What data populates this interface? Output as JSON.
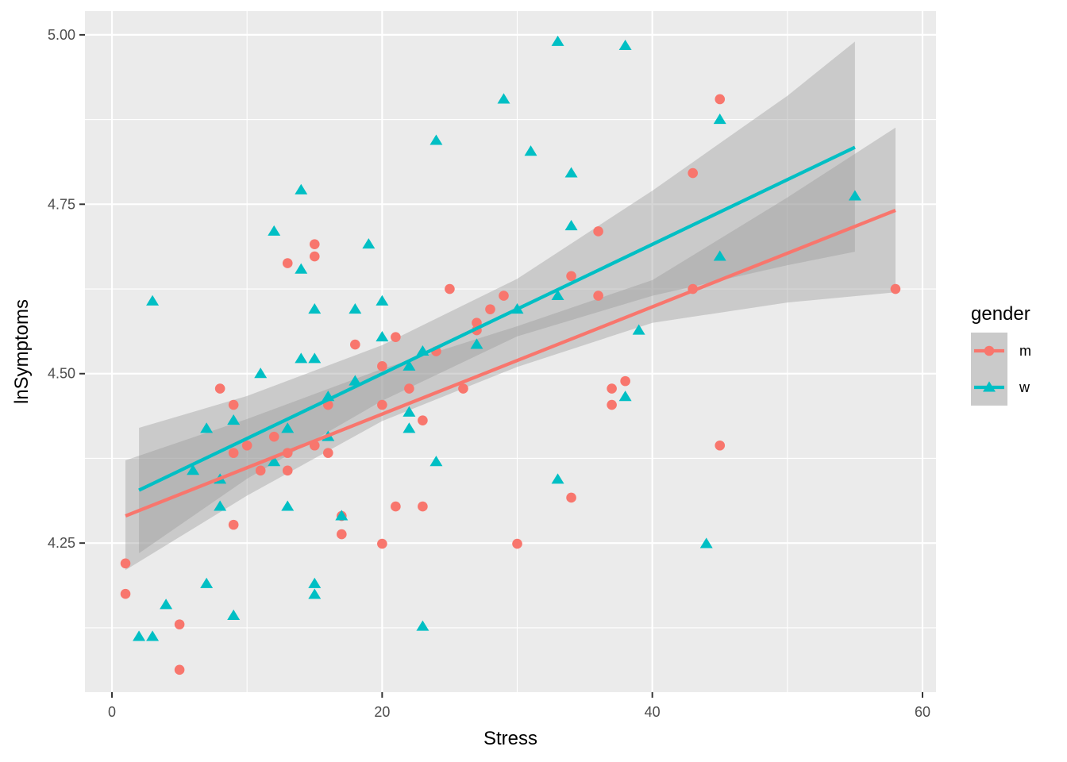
{
  "chart_data": {
    "type": "scatter",
    "xlabel": "Stress",
    "ylabel": "lnSymptoms",
    "xlim": [
      -2,
      61
    ],
    "ylim": [
      4.03,
      5.035
    ],
    "x_ticks": [
      0,
      20,
      40,
      60
    ],
    "x_tick_labels": [
      "0",
      "20",
      "40",
      "60"
    ],
    "y_ticks": [
      4.25,
      4.5,
      4.75,
      5.0
    ],
    "y_tick_labels": [
      "4.25",
      "4.50",
      "4.75",
      "5.00"
    ],
    "grid": true,
    "legend": {
      "title": "gender",
      "position": "right"
    },
    "series": [
      {
        "name": "m",
        "color": "#F8766D",
        "marker": "circle",
        "points": [
          [
            1,
            4.22
          ],
          [
            1,
            4.175
          ],
          [
            5,
            4.13
          ],
          [
            5,
            4.063
          ],
          [
            8,
            4.478
          ],
          [
            9,
            4.454
          ],
          [
            9,
            4.383
          ],
          [
            9,
            4.277
          ],
          [
            10,
            4.394
          ],
          [
            11,
            4.357
          ],
          [
            12,
            4.407
          ],
          [
            13,
            4.663
          ],
          [
            13,
            4.383
          ],
          [
            13,
            4.357
          ],
          [
            15,
            4.691
          ],
          [
            15,
            4.673
          ],
          [
            15,
            4.394
          ],
          [
            16,
            4.454
          ],
          [
            16,
            4.383
          ],
          [
            17,
            4.29
          ],
          [
            17,
            4.263
          ],
          [
            18,
            4.543
          ],
          [
            20,
            4.511
          ],
          [
            20,
            4.454
          ],
          [
            20,
            4.249
          ],
          [
            21,
            4.554
          ],
          [
            21,
            4.304
          ],
          [
            22,
            4.478
          ],
          [
            23,
            4.431
          ],
          [
            23,
            4.304
          ],
          [
            24,
            4.533
          ],
          [
            25,
            4.625
          ],
          [
            26,
            4.478
          ],
          [
            27,
            4.575
          ],
          [
            27,
            4.564
          ],
          [
            28,
            4.595
          ],
          [
            29,
            4.615
          ],
          [
            30,
            4.249
          ],
          [
            34,
            4.644
          ],
          [
            34,
            4.317
          ],
          [
            36,
            4.71
          ],
          [
            36,
            4.615
          ],
          [
            37,
            4.478
          ],
          [
            37,
            4.454
          ],
          [
            38,
            4.489
          ],
          [
            43,
            4.796
          ],
          [
            43,
            4.625
          ],
          [
            45,
            4.905
          ],
          [
            45,
            4.394
          ],
          [
            58,
            4.625
          ]
        ],
        "fit": {
          "x": [
            1,
            58
          ],
          "y": [
            4.29,
            4.741
          ]
        },
        "ci": {
          "x": [
            1,
            10,
            20,
            30,
            40,
            50,
            58
          ],
          "lower": [
            4.21,
            4.32,
            4.43,
            4.51,
            4.575,
            4.605,
            4.62
          ],
          "upper": [
            4.372,
            4.433,
            4.507,
            4.57,
            4.638,
            4.76,
            4.863
          ]
        }
      },
      {
        "name": "w",
        "color": "#00BFC4",
        "marker": "triangle",
        "points": [
          [
            2,
            4.112
          ],
          [
            3,
            4.607
          ],
          [
            3,
            4.112
          ],
          [
            4,
            4.159
          ],
          [
            6,
            4.357
          ],
          [
            7,
            4.419
          ],
          [
            7,
            4.19
          ],
          [
            8,
            4.344
          ],
          [
            8,
            4.304
          ],
          [
            9,
            4.431
          ],
          [
            9,
            4.143
          ],
          [
            11,
            4.5
          ],
          [
            12,
            4.71
          ],
          [
            12,
            4.37
          ],
          [
            13,
            4.419
          ],
          [
            13,
            4.304
          ],
          [
            14,
            4.771
          ],
          [
            14,
            4.654
          ],
          [
            14,
            4.522
          ],
          [
            15,
            4.595
          ],
          [
            15,
            4.522
          ],
          [
            15,
            4.19
          ],
          [
            15,
            4.174
          ],
          [
            16,
            4.466
          ],
          [
            16,
            4.407
          ],
          [
            17,
            4.29
          ],
          [
            18,
            4.595
          ],
          [
            18,
            4.489
          ],
          [
            19,
            4.691
          ],
          [
            20,
            4.607
          ],
          [
            20,
            4.554
          ],
          [
            22,
            4.511
          ],
          [
            22,
            4.443
          ],
          [
            22,
            4.419
          ],
          [
            23,
            4.533
          ],
          [
            23,
            4.127
          ],
          [
            24,
            4.844
          ],
          [
            24,
            4.37
          ],
          [
            27,
            4.543
          ],
          [
            29,
            4.905
          ],
          [
            30,
            4.595
          ],
          [
            31,
            4.828
          ],
          [
            33,
            4.99
          ],
          [
            33,
            4.615
          ],
          [
            33,
            4.344
          ],
          [
            34,
            4.796
          ],
          [
            34,
            4.718
          ],
          [
            38,
            4.984
          ],
          [
            38,
            4.466
          ],
          [
            39,
            4.564
          ],
          [
            44,
            4.249
          ],
          [
            45,
            4.875
          ],
          [
            45,
            4.673
          ],
          [
            55,
            4.762
          ]
        ],
        "fit": {
          "x": [
            2,
            55
          ],
          "y": [
            4.328,
            4.834
          ]
        },
        "ci": {
          "x": [
            2,
            10,
            20,
            30,
            40,
            50,
            55
          ],
          "lower": [
            4.235,
            4.345,
            4.46,
            4.555,
            4.615,
            4.66,
            4.68
          ],
          "upper": [
            4.42,
            4.467,
            4.542,
            4.64,
            4.77,
            4.91,
            4.99
          ]
        }
      }
    ]
  }
}
